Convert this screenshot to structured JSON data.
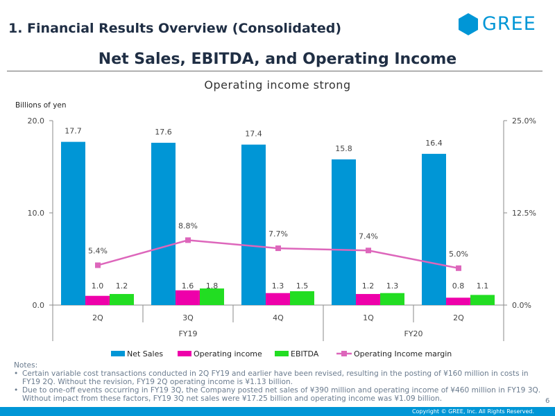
{
  "header": {
    "title": "1. Financial Results Overview (Consolidated)",
    "logo_text": "GREE",
    "brand_color": "#0096d6"
  },
  "main_title": "Net Sales, EBITDA, and Operating Income",
  "subtitle": "Operating income strong",
  "chart_data": {
    "type": "bar",
    "title": "Net Sales, EBITDA, and Operating Income",
    "unit_label": "Billions of yen",
    "categories": [
      "2Q",
      "3Q",
      "4Q",
      "1Q",
      "2Q"
    ],
    "fiscal_groups": [
      {
        "label": "FY19",
        "categories": [
          "2Q",
          "3Q",
          "4Q"
        ]
      },
      {
        "label": "FY20",
        "categories": [
          "1Q",
          "2Q"
        ]
      }
    ],
    "series": [
      {
        "name": "Net Sales",
        "type": "bar",
        "axis": "left",
        "color": "#0096d6",
        "values": [
          17.7,
          17.6,
          17.4,
          15.8,
          16.4
        ],
        "labels": [
          "17.7",
          "17.6",
          "17.4",
          "15.8",
          "16.4"
        ]
      },
      {
        "name": "Operating income",
        "type": "bar",
        "axis": "left",
        "color": "#ee00aa",
        "values": [
          1.0,
          1.6,
          1.3,
          1.2,
          0.8
        ],
        "labels": [
          "1.0",
          "1.6",
          "1.3",
          "1.2",
          "0.8"
        ]
      },
      {
        "name": "EBITDA",
        "type": "bar",
        "axis": "left",
        "color": "#22dd22",
        "values": [
          1.2,
          1.8,
          1.5,
          1.3,
          1.1
        ],
        "labels": [
          "1.2",
          "1.8",
          "1.5",
          "1.3",
          "1.1"
        ]
      },
      {
        "name": "Operating Income margin",
        "type": "line",
        "axis": "right",
        "color": "#dd66bb",
        "values": [
          5.4,
          8.8,
          7.7,
          7.4,
          5.0
        ],
        "labels": [
          "5.4%",
          "8.8%",
          "7.7%",
          "7.4%",
          "5.0%"
        ]
      }
    ],
    "y_left": {
      "range": [
        0,
        20
      ],
      "ticks": [
        0,
        10,
        20
      ],
      "tick_labels": [
        "0.0",
        "10.0",
        "20.0"
      ]
    },
    "y_right": {
      "range": [
        0,
        25
      ],
      "ticks": [
        0,
        12.5,
        25
      ],
      "tick_labels": [
        "0.0%",
        "12.5%",
        "25.0%"
      ]
    },
    "legend_position": "bottom",
    "grid": false
  },
  "notes": {
    "heading": "Notes:",
    "items": [
      "Certain variable cost transactions conducted in 2Q FY19 and earlier have been revised, resulting in the posting of ¥160 million in costs in FY19 2Q. Without the revision, FY19 2Q operating income is ¥1.13 billion.",
      "Due to one-off events occurring in FY19 3Q, the Company posted net sales of ¥390 million and operating income of ¥460 million in FY19 3Q. Without impact from these factors, FY19 3Q net sales were ¥17.25 billion and operating income was ¥1.09 billion."
    ]
  },
  "page_number": "6",
  "copyright": "Copyright © GREE, Inc. All Rights Reserved."
}
